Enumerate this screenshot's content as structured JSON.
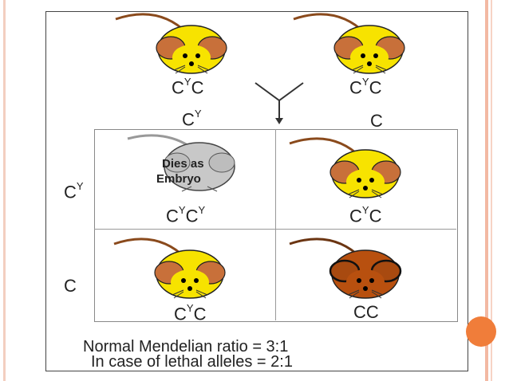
{
  "slide": {
    "parent_left_label": "C",
    "parent_left_sup": "Y",
    "parent_left_suffix": "C",
    "parent_right_label": "C",
    "parent_right_sup": "Y",
    "parent_right_suffix": "C",
    "col_header_1": "C",
    "col_header_1_sup": "Y",
    "col_header_2": "C",
    "row_header_1": "C",
    "row_header_1_sup": "Y",
    "row_header_2": "C",
    "cell_tl_label_a": "C",
    "cell_tl_sup_a": "Y",
    "cell_tl_label_b": "C",
    "cell_tl_sup_b": "Y",
    "cell_tl_note_1": "Dies as",
    "cell_tl_note_2": "Embryo",
    "cell_tr_label": "C",
    "cell_tr_sup": "Y",
    "cell_tr_suffix": "C",
    "cell_bl_label": "C",
    "cell_bl_sup": "Y",
    "cell_bl_suffix": "C",
    "cell_br_label": "CC",
    "ratio_line_1": "Normal Mendelian ratio = 3:1",
    "ratio_line_2": "In case of lethal alleles = 2:1"
  },
  "colors": {
    "yellow_mouse": "#f7e300",
    "gray_mouse": "#c8c8c8",
    "brown_mouse": "#b8500f",
    "ear": "#c8703a",
    "accent": "#f07d3a"
  }
}
